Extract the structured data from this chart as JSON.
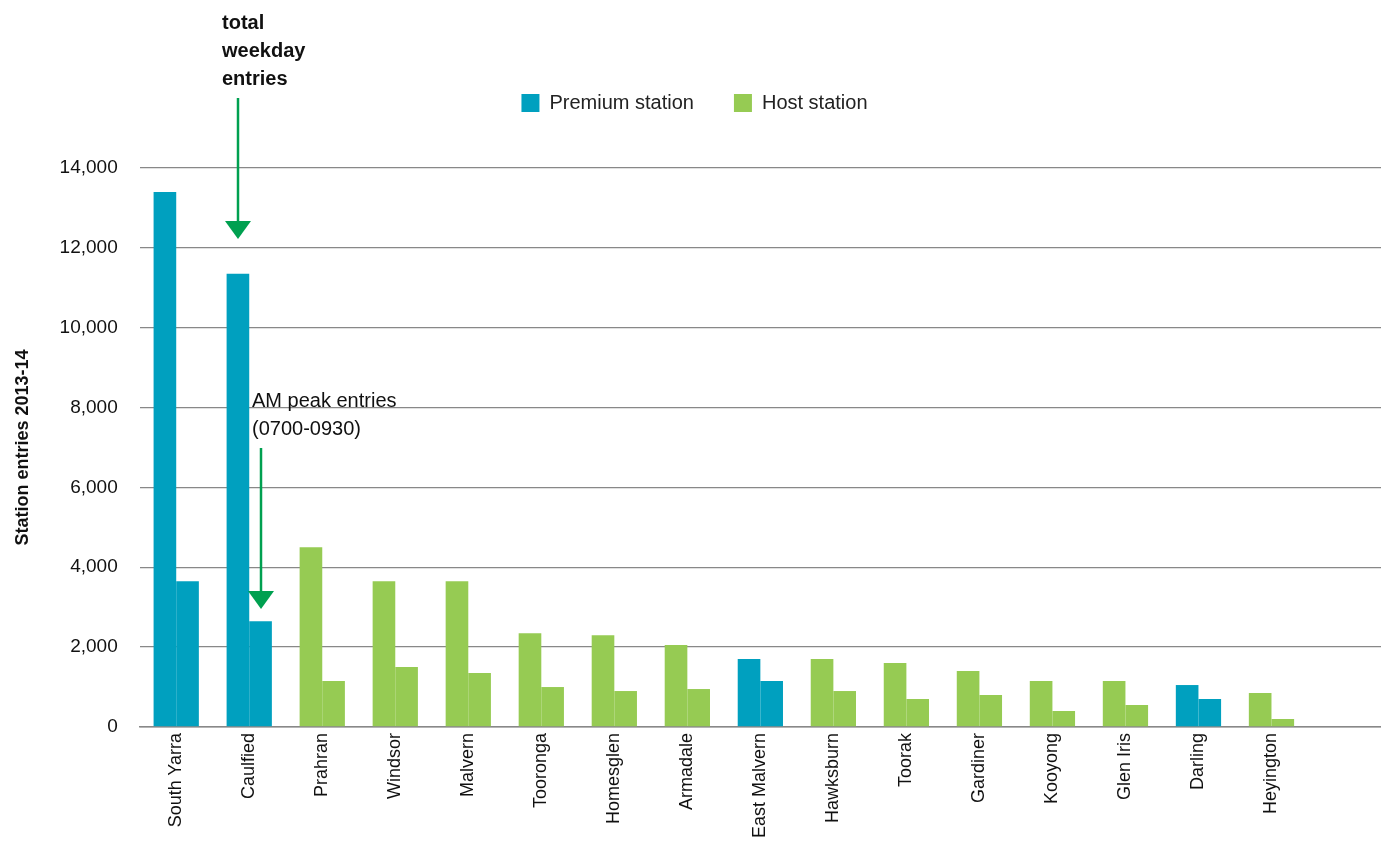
{
  "chart_data": {
    "type": "bar",
    "ylabel": "Station entries 2013-14",
    "categories": [
      "South Yarra",
      "Caulfied",
      "Prahran",
      "Windsor",
      "Malvern",
      "Tooronga",
      "Homesglen",
      "Armadale",
      "East Malvern",
      "Hawksburn",
      "Toorak",
      "Gardiner",
      "Kooyong",
      "Glen Iris",
      "Darling",
      "Heyington",
      null
    ],
    "series": [
      {
        "name": "Premium station",
        "color": "#00a0bf",
        "values": [
          13400,
          11350,
          null,
          null,
          null,
          null,
          null,
          null,
          1700,
          null,
          null,
          null,
          null,
          null,
          1050,
          null,
          null
        ]
      },
      {
        "name": "Host station",
        "color": "#96cb53",
        "values": [
          null,
          null,
          4500,
          3650,
          3650,
          2350,
          2300,
          2050,
          null,
          1700,
          1600,
          1400,
          1150,
          1150,
          null,
          850,
          null
        ]
      },
      {
        "color": "#00a0bf",
        "values": [
          3650,
          2650,
          null,
          null,
          null,
          null,
          null,
          null,
          1150,
          null,
          null,
          null,
          null,
          null,
          700,
          null,
          null
        ]
      },
      {
        "color": "#96cb53",
        "values": [
          null,
          null,
          1150,
          1500,
          1350,
          1000,
          900,
          950,
          null,
          900,
          700,
          800,
          400,
          550,
          null,
          200,
          null
        ]
      }
    ],
    "ylim": [
      0,
      14000
    ],
    "yticks": [
      0,
      {
        "value": 2000,
        "label": "2,000"
      },
      {
        "value": 4000,
        "label": "4,000"
      },
      {
        "value": 6000,
        "label": "6,000"
      },
      {
        "value": 8000,
        "label": "8,000"
      },
      {
        "value": 10000,
        "label": "10,000"
      },
      {
        "value": 12000,
        "label": "12,000"
      },
      {
        "value": 14000,
        "label": "14,000"
      }
    ],
    "grid": "y",
    "legend": "top",
    "annotations": [
      "total weekday entries",
      "AM peak entries (0700-0930)"
    ]
  }
}
